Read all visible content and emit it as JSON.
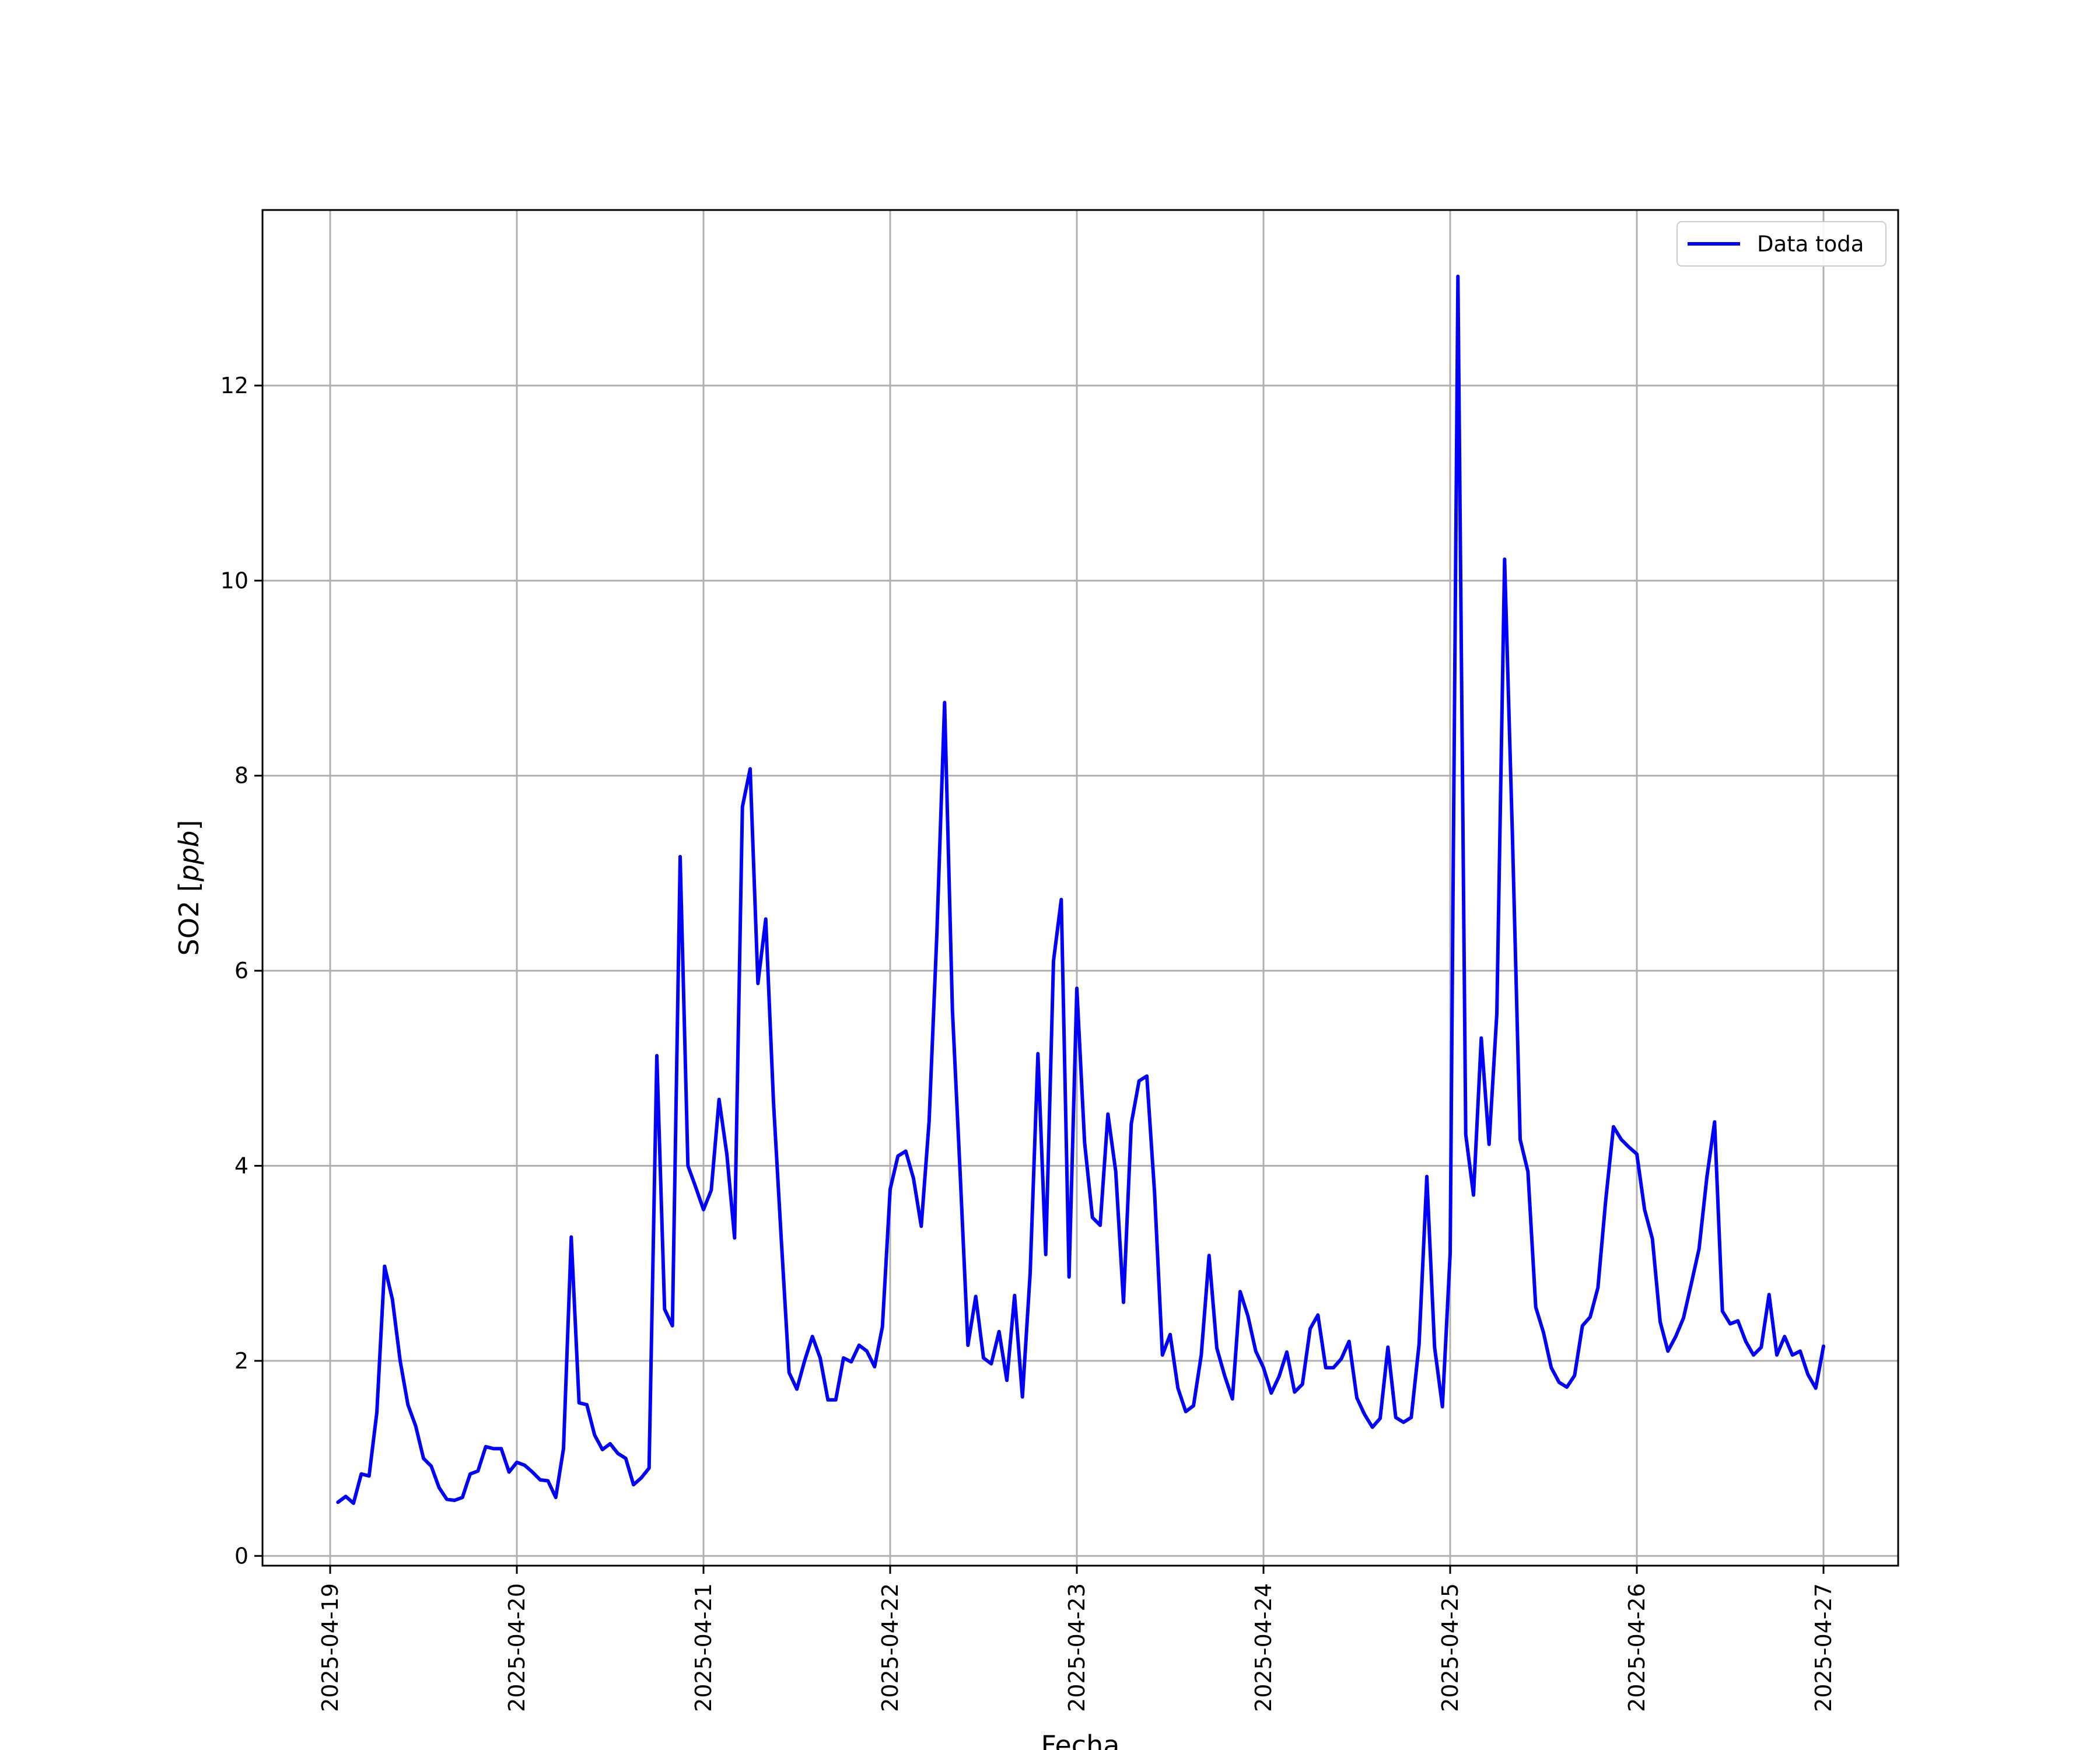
{
  "chart_data": {
    "type": "line",
    "title": "",
    "xlabel": "Fecha",
    "ylabel_main": "SO2 [",
    "ylabel_unit": "ppb",
    "ylabel_close": "]",
    "ylim": [
      -0.1,
      13.8
    ],
    "x_tick_labels": [
      "2025-04-19",
      "2025-04-20",
      "2025-04-21",
      "2025-04-22",
      "2025-04-23",
      "2025-04-24",
      "2025-04-25",
      "2025-04-26",
      "2025-04-27"
    ],
    "y_ticks": [
      0,
      2,
      4,
      6,
      8,
      10,
      12
    ],
    "y_tick_labels": [
      "0",
      "2",
      "4",
      "6",
      "8",
      "10",
      "12"
    ],
    "grid": true,
    "legend_position": "top-right",
    "series": [
      {
        "name": "Data toda",
        "color": "#0000ff",
        "x": [
          "2025-04-19 01:00",
          "2025-04-19 02:00",
          "2025-04-19 03:00",
          "2025-04-19 04:00",
          "2025-04-19 05:00",
          "2025-04-19 06:00",
          "2025-04-19 07:00",
          "2025-04-19 08:00",
          "2025-04-19 09:00",
          "2025-04-19 10:00",
          "2025-04-19 11:00",
          "2025-04-19 12:00",
          "2025-04-19 13:00",
          "2025-04-19 14:00",
          "2025-04-19 15:00",
          "2025-04-19 16:00",
          "2025-04-19 17:00",
          "2025-04-19 18:00",
          "2025-04-19 19:00",
          "2025-04-19 20:00",
          "2025-04-19 21:00",
          "2025-04-19 22:00",
          "2025-04-19 23:00",
          "2025-04-20 00:00",
          "2025-04-20 01:00",
          "2025-04-20 02:00",
          "2025-04-20 03:00",
          "2025-04-20 04:00",
          "2025-04-20 05:00",
          "2025-04-20 06:00",
          "2025-04-20 07:00",
          "2025-04-20 08:00",
          "2025-04-20 09:00",
          "2025-04-20 10:00",
          "2025-04-20 11:00",
          "2025-04-20 12:00",
          "2025-04-20 13:00",
          "2025-04-20 14:00",
          "2025-04-20 15:00",
          "2025-04-20 16:00",
          "2025-04-20 17:00",
          "2025-04-20 18:00",
          "2025-04-20 19:00",
          "2025-04-20 20:00",
          "2025-04-20 21:00",
          "2025-04-20 22:00",
          "2025-04-20 23:00",
          "2025-04-21 00:00",
          "2025-04-21 01:00",
          "2025-04-21 02:00",
          "2025-04-21 03:00",
          "2025-04-21 04:00",
          "2025-04-21 05:00",
          "2025-04-21 06:00",
          "2025-04-21 07:00",
          "2025-04-21 08:00",
          "2025-04-21 09:00",
          "2025-04-21 10:00",
          "2025-04-21 11:00",
          "2025-04-21 12:00",
          "2025-04-21 13:00",
          "2025-04-21 14:00",
          "2025-04-21 15:00",
          "2025-04-21 16:00",
          "2025-04-21 17:00",
          "2025-04-21 18:00",
          "2025-04-21 19:00",
          "2025-04-21 20:00",
          "2025-04-21 21:00",
          "2025-04-21 22:00",
          "2025-04-21 23:00",
          "2025-04-22 00:00",
          "2025-04-22 01:00",
          "2025-04-22 02:00",
          "2025-04-22 03:00",
          "2025-04-22 04:00",
          "2025-04-22 05:00",
          "2025-04-22 06:00",
          "2025-04-22 07:00",
          "2025-04-22 08:00",
          "2025-04-22 09:00",
          "2025-04-22 10:00",
          "2025-04-22 11:00",
          "2025-04-22 12:00",
          "2025-04-22 13:00",
          "2025-04-22 14:00",
          "2025-04-22 15:00",
          "2025-04-22 16:00",
          "2025-04-22 17:00",
          "2025-04-22 18:00",
          "2025-04-22 19:00",
          "2025-04-22 20:00",
          "2025-04-22 21:00",
          "2025-04-22 22:00",
          "2025-04-22 23:00",
          "2025-04-23 00:00",
          "2025-04-23 01:00",
          "2025-04-23 02:00",
          "2025-04-23 03:00",
          "2025-04-23 04:00",
          "2025-04-23 05:00",
          "2025-04-23 06:00",
          "2025-04-23 07:00",
          "2025-04-23 08:00",
          "2025-04-23 09:00",
          "2025-04-23 10:00",
          "2025-04-23 11:00",
          "2025-04-23 12:00",
          "2025-04-23 13:00",
          "2025-04-23 14:00",
          "2025-04-23 15:00",
          "2025-04-23 16:00",
          "2025-04-23 17:00",
          "2025-04-23 18:00",
          "2025-04-23 19:00",
          "2025-04-23 20:00",
          "2025-04-23 21:00",
          "2025-04-23 22:00",
          "2025-04-23 23:00",
          "2025-04-24 00:00",
          "2025-04-24 01:00",
          "2025-04-24 02:00",
          "2025-04-24 03:00",
          "2025-04-24 04:00",
          "2025-04-24 05:00",
          "2025-04-24 06:00",
          "2025-04-24 07:00",
          "2025-04-24 08:00",
          "2025-04-24 09:00",
          "2025-04-24 10:00",
          "2025-04-24 11:00",
          "2025-04-24 12:00",
          "2025-04-24 13:00",
          "2025-04-24 14:00",
          "2025-04-24 15:00",
          "2025-04-24 16:00",
          "2025-04-24 17:00",
          "2025-04-24 18:00",
          "2025-04-24 19:00",
          "2025-04-24 20:00",
          "2025-04-24 21:00",
          "2025-04-24 22:00",
          "2025-04-24 23:00",
          "2025-04-25 00:00",
          "2025-04-25 01:00",
          "2025-04-25 02:00",
          "2025-04-25 03:00",
          "2025-04-25 04:00",
          "2025-04-25 05:00",
          "2025-04-25 06:00",
          "2025-04-25 07:00",
          "2025-04-25 08:00",
          "2025-04-25 09:00",
          "2025-04-25 10:00",
          "2025-04-25 11:00",
          "2025-04-25 12:00",
          "2025-04-25 13:00",
          "2025-04-25 14:00",
          "2025-04-25 15:00",
          "2025-04-25 16:00",
          "2025-04-25 17:00",
          "2025-04-25 18:00",
          "2025-04-25 19:00",
          "2025-04-25 20:00",
          "2025-04-25 21:00",
          "2025-04-25 22:00",
          "2025-04-25 23:00",
          "2025-04-26 00:00",
          "2025-04-26 01:00",
          "2025-04-26 02:00",
          "2025-04-26 03:00",
          "2025-04-26 04:00",
          "2025-04-26 05:00",
          "2025-04-26 06:00",
          "2025-04-26 07:00",
          "2025-04-26 08:00",
          "2025-04-26 09:00",
          "2025-04-26 10:00",
          "2025-04-26 11:00",
          "2025-04-26 12:00",
          "2025-04-26 13:00",
          "2025-04-26 14:00",
          "2025-04-26 15:00",
          "2025-04-26 16:00",
          "2025-04-26 17:00",
          "2025-04-26 18:00",
          "2025-04-26 19:00",
          "2025-04-26 20:00",
          "2025-04-26 21:00",
          "2025-04-26 22:00",
          "2025-04-26 23:00",
          "2025-04-27 00:00"
        ],
        "y": [
          0.55,
          0.61,
          0.54,
          0.84,
          0.82,
          1.47,
          2.97,
          2.63,
          2.0,
          1.55,
          1.33,
          1.0,
          0.92,
          0.7,
          0.58,
          0.57,
          0.6,
          0.84,
          0.87,
          1.12,
          1.1,
          1.1,
          0.86,
          0.96,
          0.93,
          0.86,
          0.78,
          0.77,
          0.6,
          1.1,
          3.27,
          1.57,
          1.55,
          1.24,
          1.09,
          1.15,
          1.05,
          1.0,
          0.73,
          0.8,
          0.9,
          5.13,
          2.53,
          2.36,
          7.17,
          4.0,
          3.78,
          3.55,
          3.75,
          4.68,
          4.12,
          3.26,
          7.68,
          8.07,
          5.87,
          6.53,
          4.65,
          3.25,
          1.88,
          1.71,
          2.0,
          2.25,
          2.03,
          1.6,
          1.6,
          2.03,
          1.99,
          2.16,
          2.1,
          1.94,
          2.35,
          3.76,
          4.1,
          4.15,
          3.87,
          3.38,
          4.45,
          6.37,
          8.75,
          5.6,
          3.92,
          2.16,
          2.66,
          2.03,
          1.97,
          2.3,
          1.8,
          2.67,
          1.63,
          2.9,
          5.15,
          3.09,
          6.1,
          6.73,
          2.86,
          5.82,
          4.24,
          3.47,
          3.39,
          4.53,
          3.94,
          2.6,
          4.43,
          4.87,
          4.92,
          3.72,
          2.06,
          2.27,
          1.72,
          1.48,
          1.54,
          2.06,
          3.08,
          2.13,
          1.85,
          1.61,
          2.71,
          2.46,
          2.1,
          1.93,
          1.67,
          1.84,
          2.09,
          1.68,
          1.76,
          2.33,
          2.47,
          1.93,
          1.93,
          2.02,
          2.2,
          1.62,
          1.45,
          1.32,
          1.41,
          2.14,
          1.42,
          1.37,
          1.42,
          2.17,
          3.89,
          2.14,
          1.53,
          3.1,
          13.12,
          4.32,
          3.7,
          5.31,
          4.22,
          5.56,
          10.22,
          7.39,
          4.27,
          3.94,
          2.55,
          2.29,
          1.93,
          1.78,
          1.73,
          1.85,
          2.36,
          2.45,
          2.75,
          3.65,
          4.4,
          4.27,
          4.19,
          4.12,
          3.55,
          3.25,
          2.4,
          2.1,
          2.25,
          2.44,
          2.79,
          3.15,
          3.88,
          4.45,
          2.51,
          2.38,
          2.41,
          2.2,
          2.06,
          2.14,
          2.68,
          2.06,
          2.25,
          2.06,
          2.1,
          1.86,
          1.72,
          2.15
        ]
      }
    ]
  }
}
